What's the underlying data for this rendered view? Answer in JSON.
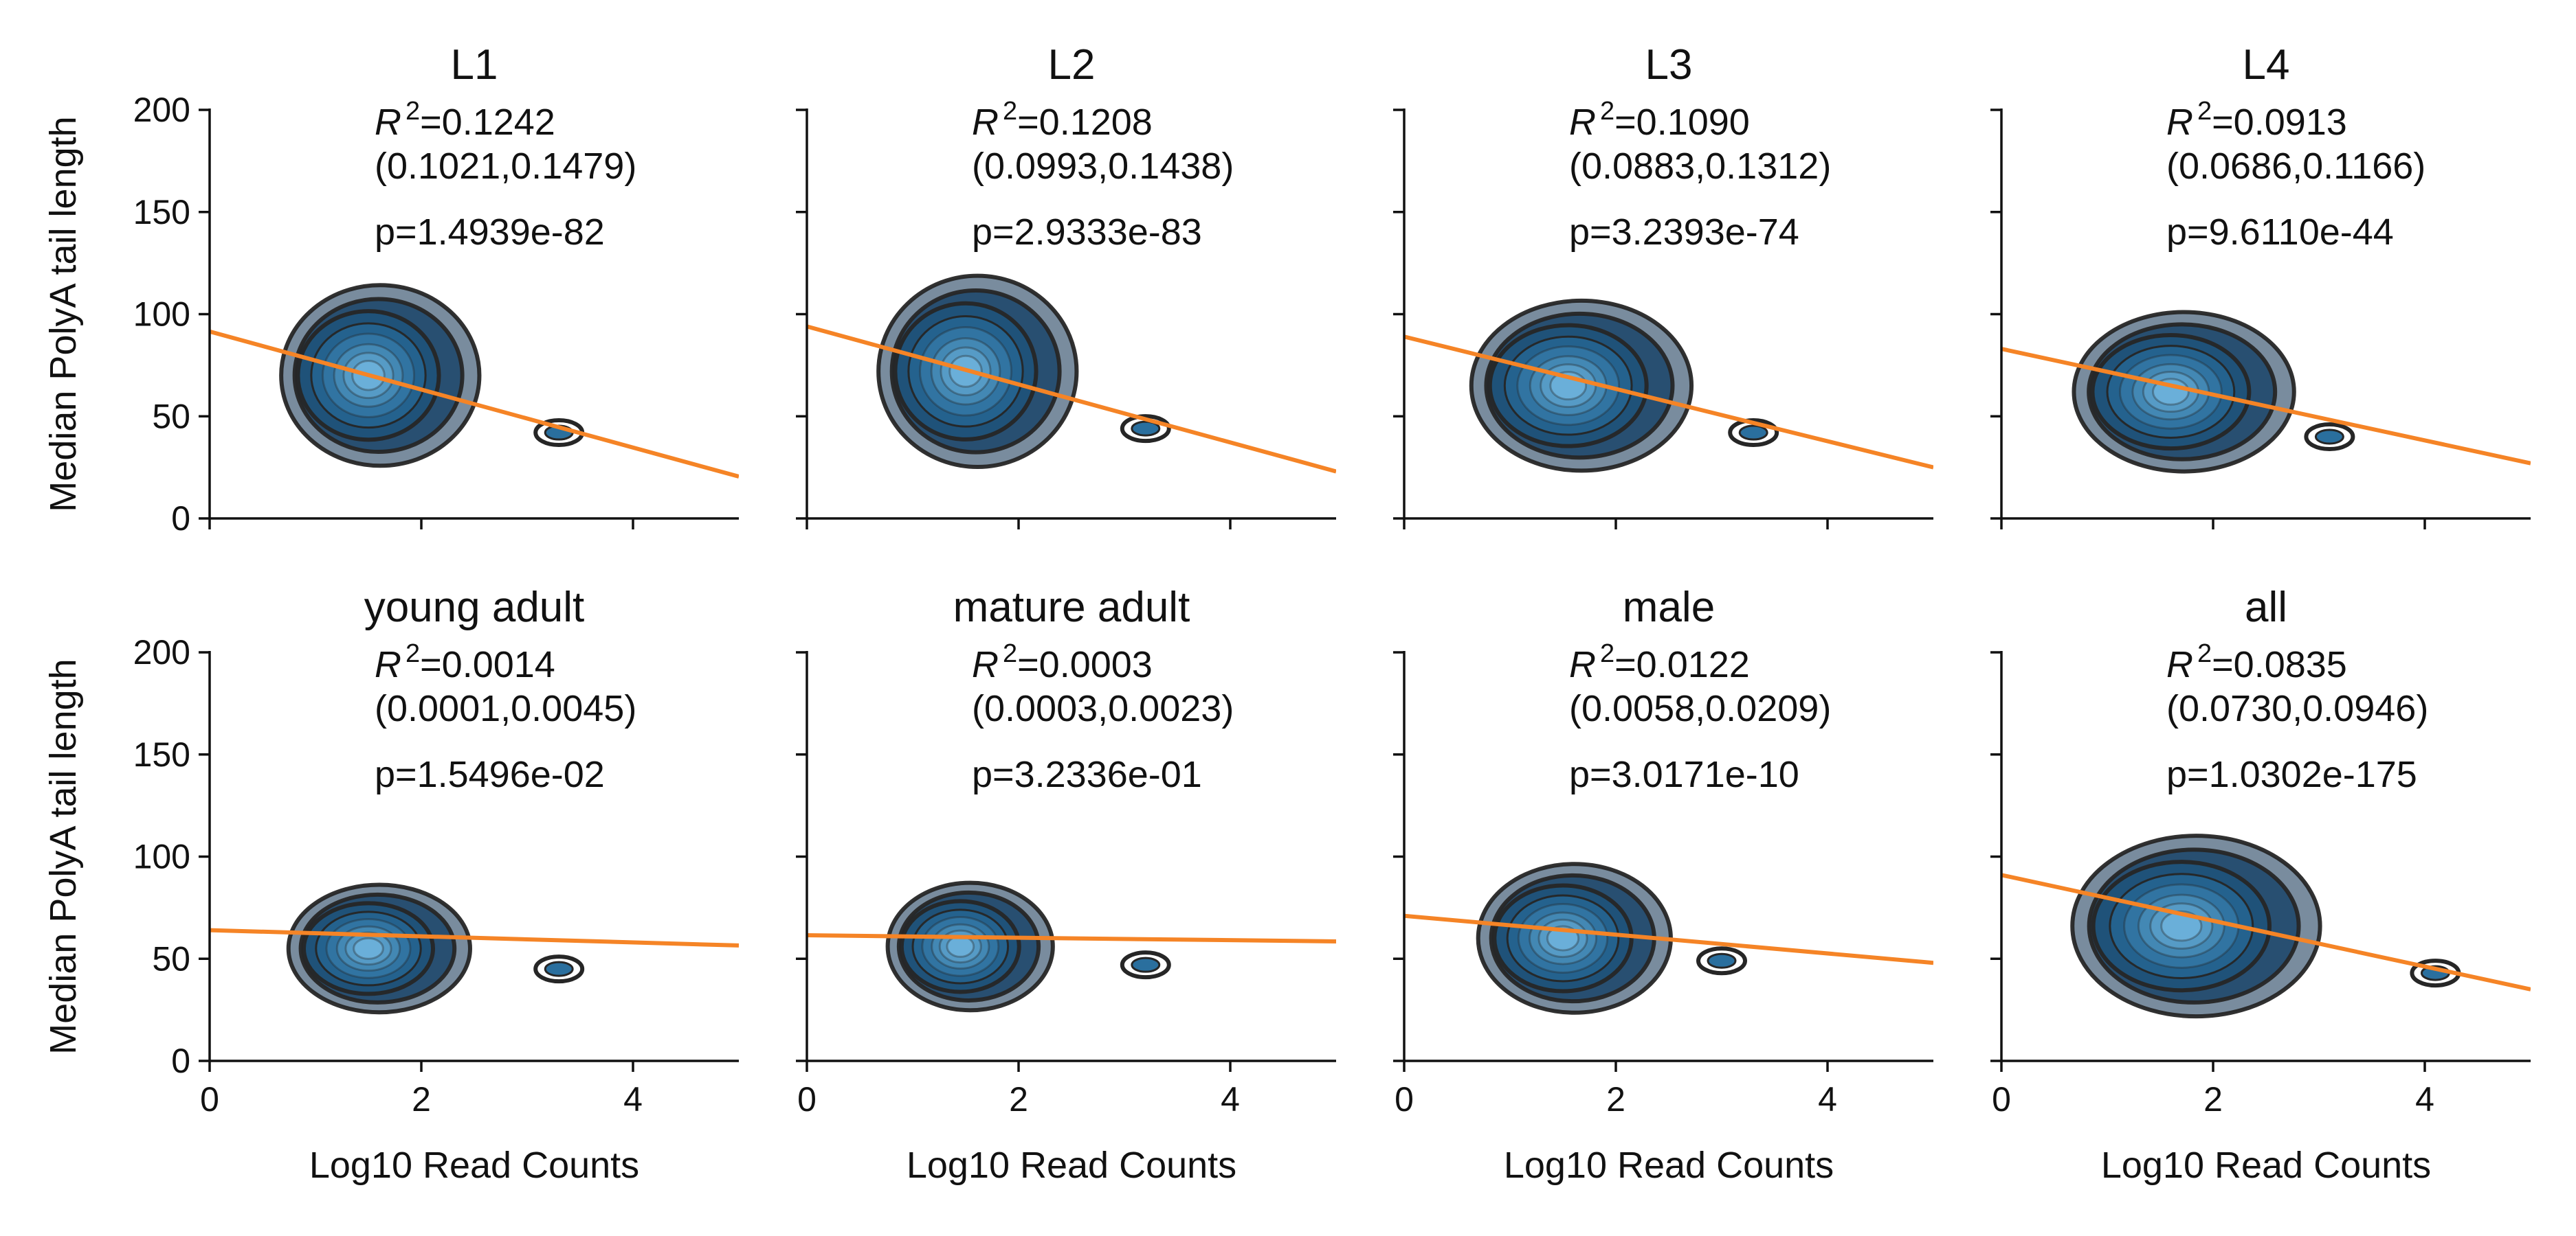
{
  "figure": {
    "ylabel": "Median PolyA tail length",
    "xlabel": "Log10 Read Counts"
  },
  "colors": {
    "fit_line": "#f58426",
    "contour": "#262626",
    "density_dark": "#0b2d4e",
    "density_mid": "#2a6f9e",
    "density_light": "#6fb4dd",
    "axis": "#111111"
  },
  "chart_data": [
    {
      "type": "contour",
      "title": "L1",
      "r2_label": "R",
      "r2_value": "=0.1242",
      "ci": "(0.1021,0.1479)",
      "p": "p=1.4939e-82",
      "fit": {
        "x": [
          0,
          5
        ],
        "y": [
          91.5,
          20.5
        ]
      },
      "center": [
        1.5,
        70
      ],
      "sd": [
        0.36,
        17
      ],
      "blob": {
        "x": 3.3,
        "y": 42
      },
      "xlim": [
        0,
        5
      ],
      "ylim": [
        0,
        200
      ],
      "xticks": [
        0,
        2,
        4
      ],
      "yticks": [
        0,
        50,
        100,
        150,
        200
      ],
      "xlabel": "",
      "ylabel": "Median PolyA tail length"
    },
    {
      "type": "contour",
      "title": "L2",
      "r2_label": "R",
      "r2_value": "=0.1208",
      "ci": "(0.0993,0.1438)",
      "p": "p=2.9333e-83",
      "fit": {
        "x": [
          0,
          5
        ],
        "y": [
          94,
          23
        ]
      },
      "center": [
        1.5,
        72
      ],
      "sd": [
        0.36,
        18
      ],
      "blob": {
        "x": 3.2,
        "y": 44
      },
      "xlim": [
        0,
        5
      ],
      "ylim": [
        0,
        200
      ],
      "xticks": [
        0,
        2,
        4
      ],
      "yticks": [
        0,
        50,
        100,
        150,
        200
      ],
      "xlabel": "",
      "ylabel": ""
    },
    {
      "type": "contour",
      "title": "L3",
      "r2_label": "R",
      "r2_value": "=0.1090",
      "ci": "(0.0883,0.1312)",
      "p": "p=3.2393e-74",
      "fit": {
        "x": [
          0,
          5
        ],
        "y": [
          89,
          25
        ]
      },
      "center": [
        1.55,
        65
      ],
      "sd": [
        0.4,
        16
      ],
      "blob": {
        "x": 3.3,
        "y": 42
      },
      "xlim": [
        0,
        5
      ],
      "ylim": [
        0,
        200
      ],
      "xticks": [
        0,
        2,
        4
      ],
      "yticks": [
        0,
        50,
        100,
        150,
        200
      ],
      "xlabel": "",
      "ylabel": ""
    },
    {
      "type": "contour",
      "title": "L4",
      "r2_label": "R",
      "r2_value": "=0.0913",
      "ci": "(0.0686,0.1166)",
      "p": "p=9.6110e-44",
      "fit": {
        "x": [
          0,
          5
        ],
        "y": [
          83,
          27
        ]
      },
      "center": [
        1.6,
        62
      ],
      "sd": [
        0.4,
        15
      ],
      "blob": {
        "x": 3.1,
        "y": 40
      },
      "xlim": [
        0,
        5
      ],
      "ylim": [
        0,
        200
      ],
      "xticks": [
        0,
        2,
        4
      ],
      "yticks": [
        0,
        50,
        100,
        150,
        200
      ],
      "xlabel": "",
      "ylabel": ""
    },
    {
      "type": "contour",
      "title": "young adult",
      "r2_label": "R",
      "r2_value": "=0.0014",
      "ci": "(0.0001,0.0045)",
      "p": "p=1.5496e-02",
      "fit": {
        "x": [
          0,
          5
        ],
        "y": [
          64,
          56.5
        ]
      },
      "center": [
        1.5,
        55
      ],
      "sd": [
        0.33,
        12
      ],
      "blob": {
        "x": 3.3,
        "y": 45
      },
      "xlim": [
        0,
        5
      ],
      "ylim": [
        0,
        200
      ],
      "xticks": [
        0,
        2,
        4
      ],
      "yticks": [
        0,
        50,
        100,
        150,
        200
      ],
      "xlabel": "Log10 Read Counts",
      "ylabel": "Median PolyA tail length"
    },
    {
      "type": "contour",
      "title": "mature adult",
      "r2_label": "R",
      "r2_value": "=0.0003",
      "ci": "(0.0003,0.0023)",
      "p": "p=3.2336e-01",
      "fit": {
        "x": [
          0,
          5
        ],
        "y": [
          61.5,
          58.5
        ]
      },
      "center": [
        1.45,
        56
      ],
      "sd": [
        0.3,
        12
      ],
      "blob": {
        "x": 3.2,
        "y": 47
      },
      "xlim": [
        0,
        5
      ],
      "ylim": [
        0,
        200
      ],
      "xticks": [
        0,
        2,
        4
      ],
      "yticks": [
        0,
        50,
        100,
        150,
        200
      ],
      "xlabel": "Log10 Read Counts",
      "ylabel": ""
    },
    {
      "type": "contour",
      "title": "male",
      "r2_label": "R",
      "r2_value": "=0.0122",
      "ci": "(0.0058,0.0209)",
      "p": "p=3.0171e-10",
      "fit": {
        "x": [
          0,
          5
        ],
        "y": [
          71,
          48
        ]
      },
      "center": [
        1.5,
        60
      ],
      "sd": [
        0.35,
        14
      ],
      "blob": {
        "x": 3.0,
        "y": 49
      },
      "xlim": [
        0,
        5
      ],
      "ylim": [
        0,
        200
      ],
      "xticks": [
        0,
        2,
        4
      ],
      "yticks": [
        0,
        50,
        100,
        150,
        200
      ],
      "xlabel": "Log10 Read Counts",
      "ylabel": ""
    },
    {
      "type": "contour",
      "title": "all",
      "r2_label": "R",
      "r2_value": "=0.0835",
      "ci": "(0.0730,0.0946)",
      "p": "p=1.0302e-175",
      "fit": {
        "x": [
          0,
          5
        ],
        "y": [
          91,
          35
        ]
      },
      "center": [
        1.7,
        66
      ],
      "sd": [
        0.45,
        17
      ],
      "blob": {
        "x": 4.1,
        "y": 43
      },
      "xlim": [
        0,
        5
      ],
      "ylim": [
        0,
        200
      ],
      "xticks": [
        0,
        2,
        4
      ],
      "yticks": [
        0,
        50,
        100,
        150,
        200
      ],
      "xlabel": "Log10 Read Counts",
      "ylabel": ""
    }
  ]
}
